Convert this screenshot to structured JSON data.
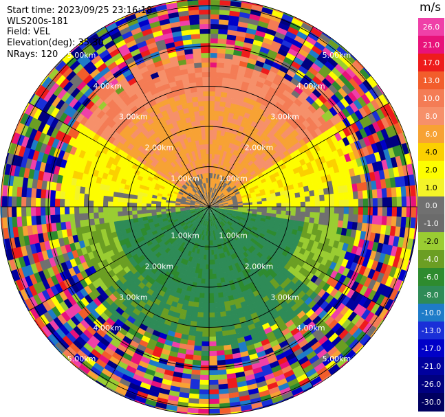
{
  "info": {
    "start_time": "Start time: 2023/09/25 23:16:18",
    "instrument": "WLS200s-181",
    "field": "Field: VEL",
    "elevation": "Elevation(deg): 35.30",
    "nrays": "NRays: 120"
  },
  "colorbar": {
    "unit": "m/s",
    "entries": [
      {
        "label": "26.0",
        "color": "#ef40a8"
      },
      {
        "label": "21.0",
        "color": "#e8127a"
      },
      {
        "label": "17.0",
        "color": "#ee1c1c"
      },
      {
        "label": "13.0",
        "color": "#f25d2b"
      },
      {
        "label": "10.0",
        "color": "#f47c55"
      },
      {
        "label": "8.0",
        "color": "#f6906a"
      },
      {
        "label": "6.0",
        "color": "#f7a234"
      },
      {
        "label": "4.0",
        "color": "#fbd000"
      },
      {
        "label": "2.0",
        "color": "#fdfd00"
      },
      {
        "label": "1.0",
        "color": "#f4f428"
      },
      {
        "label": "0.0",
        "color": "#707070"
      },
      {
        "label": "-1.0",
        "color": "#6b6b6b"
      },
      {
        "label": "-2.0",
        "color": "#9acd32"
      },
      {
        "label": "-4.0",
        "color": "#6b9e23"
      },
      {
        "label": "-6.0",
        "color": "#2e8b2e"
      },
      {
        "label": "-8.0",
        "color": "#2e8b57"
      },
      {
        "label": "-10.0",
        "color": "#1e7bc8"
      },
      {
        "label": "-13.0",
        "color": "#1a2fd8"
      },
      {
        "label": "-17.0",
        "color": "#0000c8"
      },
      {
        "label": "-21.0",
        "color": "#00009e"
      },
      {
        "label": "-26.0",
        "color": "#000080"
      },
      {
        "label": "-30.0",
        "color": "#000060"
      }
    ]
  },
  "range_rings": {
    "labels": [
      "1.00km",
      "2.00km",
      "3.00km",
      "4.00km",
      "5.00km"
    ]
  }
}
